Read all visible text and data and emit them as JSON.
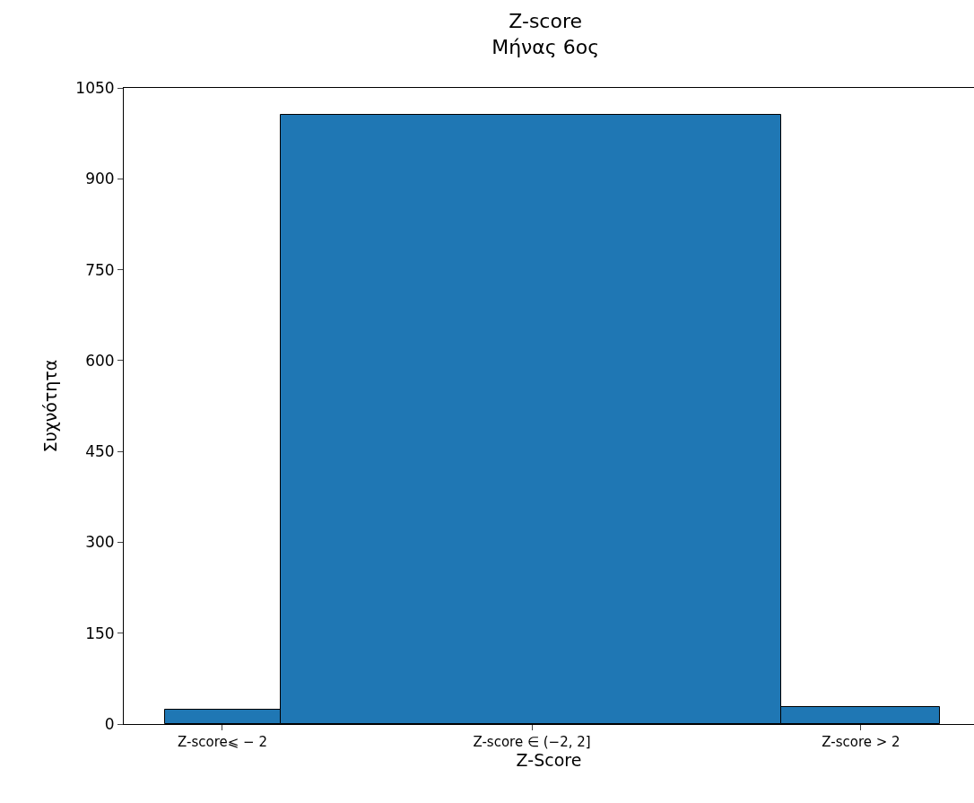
{
  "chart_data": {
    "type": "bar",
    "title": "Z-score",
    "subtitle": "Μήνας 6ος",
    "xlabel": "Z-Score",
    "ylabel": "Συχνότητα",
    "categories": [
      "Z-score⩽ − 2",
      "Z-score ∈ (−2, 2]",
      "Z-score > 2"
    ],
    "values": [
      24,
      1005,
      28
    ],
    "color": "#1f77b4",
    "ylim": [
      0,
      1050
    ],
    "yticks": [
      0,
      150,
      300,
      450,
      600,
      750,
      900,
      1050
    ]
  }
}
